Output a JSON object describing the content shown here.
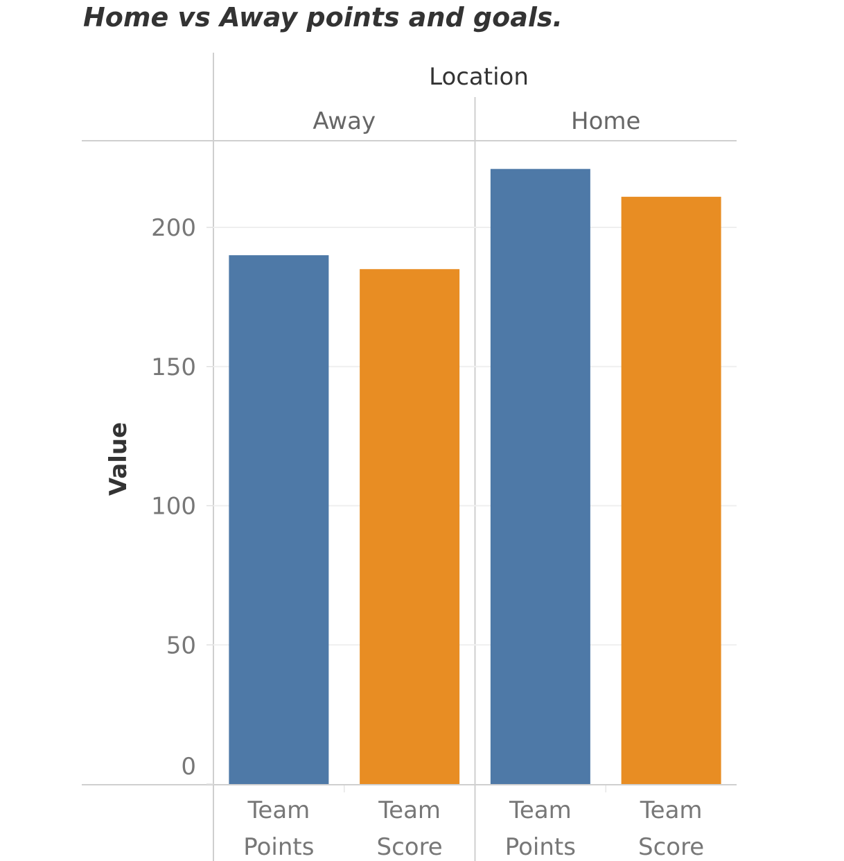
{
  "chart_data": {
    "type": "bar",
    "title": "Home vs Away points and goals.",
    "column_header": "Location",
    "groups": [
      "Away",
      "Home"
    ],
    "categories": [
      "Team Points",
      "Team Score"
    ],
    "category_lines": [
      [
        "Team",
        "Points"
      ],
      [
        "Team",
        "Score"
      ]
    ],
    "series": [
      {
        "group": "Away",
        "values": [
          190,
          185
        ]
      },
      {
        "group": "Home",
        "values": [
          221,
          211
        ]
      }
    ],
    "ylabel": "Value",
    "xlabel": "",
    "ylim": [
      0,
      230
    ],
    "yticks": [
      0,
      50,
      100,
      150,
      200
    ],
    "grid": true,
    "legend": "none",
    "colors": {
      "Team Points": "#4e79a7",
      "Team Score": "#e88d23"
    }
  }
}
